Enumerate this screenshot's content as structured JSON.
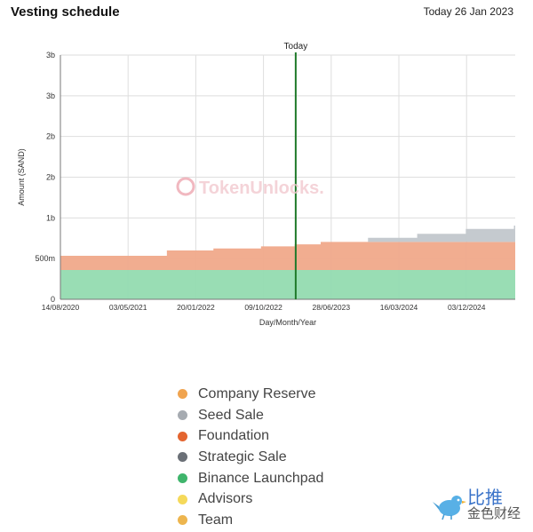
{
  "header": {
    "title": "Vesting schedule",
    "date": "Today 26 Jan 2023"
  },
  "chart_data": {
    "type": "area",
    "stepped": true,
    "stacked": true,
    "title": "Vesting schedule",
    "xlabel": "Day/Month/Year",
    "ylabel": "Amount (SAND)",
    "x_ticks": [
      "14/08/2020",
      "03/05/2021",
      "20/01/2022",
      "09/10/2022",
      "28/06/2023",
      "16/03/2024",
      "03/12/2024"
    ],
    "y_ticks": [
      "0",
      "500m",
      "1b",
      "2b",
      "2b",
      "3b",
      "3b"
    ],
    "y_tick_values": [
      0,
      500,
      1000,
      1500,
      2000,
      2500,
      3000
    ],
    "ylim": [
      0,
      3000
    ],
    "xlim": [
      0,
      1730
    ],
    "today_marker": {
      "label": "Today",
      "x": 895
    },
    "x_unit": "days since 14/08/2020",
    "y_unit": "millions of SAND",
    "x": [
      0,
      320,
      405,
      582,
      763,
      891,
      990,
      1170,
      1357,
      1542,
      1725
    ],
    "series": [
      {
        "name": "Binance Launchpad",
        "color": "#93dbb0",
        "values": [
          360,
          360,
          360,
          360,
          360,
          360,
          360,
          360,
          360,
          360,
          360
        ]
      },
      {
        "name": "Foundation",
        "color": "#f0a98a",
        "values": [
          175,
          175,
          240,
          265,
          290,
          315,
          345,
          345,
          345,
          345,
          345
        ]
      },
      {
        "name": "Seed Sale",
        "color": "#c2c7cc",
        "values": [
          0,
          0,
          0,
          0,
          0,
          0,
          0,
          50,
          100,
          160,
          200
        ]
      },
      {
        "name": "Strategic Sale",
        "color": "#a3a9b0",
        "values": [
          0,
          0,
          0,
          0,
          0,
          0,
          0,
          0,
          0,
          0,
          0
        ]
      },
      {
        "name": "Company Reserve",
        "color": "#f3c298",
        "values": [
          0,
          0,
          0,
          0,
          0,
          0,
          0,
          0,
          0,
          0,
          0
        ]
      },
      {
        "name": "Advisors",
        "color": "#f3df9a",
        "values": [
          0,
          0,
          0,
          0,
          0,
          0,
          0,
          0,
          0,
          0,
          0
        ]
      },
      {
        "name": "Team",
        "color": "#f5c987",
        "values": [
          0,
          0,
          0,
          0,
          0,
          0,
          0,
          0,
          0,
          0,
          0
        ]
      }
    ]
  },
  "watermark": {
    "text": "TokenUnlocks."
  },
  "legend": [
    {
      "label": "Company Reserve",
      "color": "#f0a450"
    },
    {
      "label": "Seed Sale",
      "color": "#a6abb1"
    },
    {
      "label": "Foundation",
      "color": "#e46530"
    },
    {
      "label": "Strategic Sale",
      "color": "#6b7077"
    },
    {
      "label": "Binance Launchpad",
      "color": "#3fb56c"
    },
    {
      "label": "Advisors",
      "color": "#f5d95a"
    },
    {
      "label": "Team",
      "color": "#edb54e"
    }
  ],
  "brand": {
    "line1": "比推",
    "line2": "金色财经"
  }
}
